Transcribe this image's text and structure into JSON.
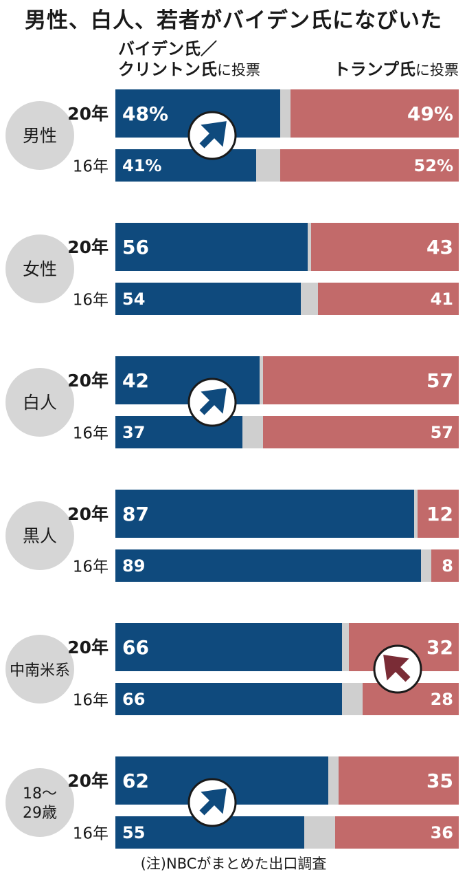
{
  "title": "男性、白人、若者がバイデン氏になびいた",
  "legend": {
    "left_line1": "バイデン氏／",
    "left_line2": "クリントン氏",
    "left_suffix": "に投票",
    "right": "トランプ氏",
    "right_suffix": "に投票"
  },
  "note": "(注)NBCがまとめた出口調査",
  "colors": {
    "dem": "#0f4a7d",
    "rep": "#c26a6a",
    "other": "#cfcfcf",
    "label_circle": "#d6d6d6",
    "arrow_rep": "#7a2c36"
  },
  "chart_data": {
    "type": "bar",
    "stacked": true,
    "orientation": "horizontal",
    "xlim": [
      0,
      100
    ],
    "series_names": [
      "バイデン氏／クリントン氏に投票",
      "トランプ氏に投票"
    ],
    "groups": [
      {
        "label": "男性",
        "arrow": "dem",
        "rows": [
          {
            "year": "20年",
            "dem": 48,
            "rep": 49,
            "dem_label": "48%",
            "rep_label": "49%"
          },
          {
            "year": "16年",
            "dem": 41,
            "rep": 52,
            "dem_label": "41%",
            "rep_label": "52%"
          }
        ]
      },
      {
        "label": "女性",
        "arrow": "",
        "rows": [
          {
            "year": "20年",
            "dem": 56,
            "rep": 43,
            "dem_label": "56",
            "rep_label": "43"
          },
          {
            "year": "16年",
            "dem": 54,
            "rep": 41,
            "dem_label": "54",
            "rep_label": "41"
          }
        ]
      },
      {
        "label": "白人",
        "arrow": "dem",
        "rows": [
          {
            "year": "20年",
            "dem": 42,
            "rep": 57,
            "dem_label": "42",
            "rep_label": "57"
          },
          {
            "year": "16年",
            "dem": 37,
            "rep": 57,
            "dem_label": "37",
            "rep_label": "57"
          }
        ]
      },
      {
        "label": "黒人",
        "arrow": "",
        "rows": [
          {
            "year": "20年",
            "dem": 87,
            "rep": 12,
            "dem_label": "87",
            "rep_label": "12"
          },
          {
            "year": "16年",
            "dem": 89,
            "rep": 8,
            "dem_label": "89",
            "rep_label": "8"
          }
        ]
      },
      {
        "label": "中南米系",
        "arrow": "rep",
        "rows": [
          {
            "year": "20年",
            "dem": 66,
            "rep": 32,
            "dem_label": "66",
            "rep_label": "32"
          },
          {
            "year": "16年",
            "dem": 66,
            "rep": 28,
            "dem_label": "66",
            "rep_label": "28"
          }
        ]
      },
      {
        "label": "18～29歳",
        "arrow": "dem",
        "rows": [
          {
            "year": "20年",
            "dem": 62,
            "rep": 35,
            "dem_label": "62",
            "rep_label": "35"
          },
          {
            "year": "16年",
            "dem": 55,
            "rep": 36,
            "dem_label": "55",
            "rep_label": "36"
          }
        ]
      }
    ]
  }
}
